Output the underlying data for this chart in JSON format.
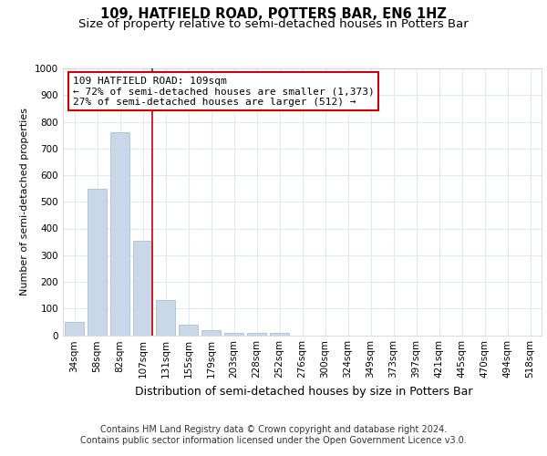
{
  "title": "109, HATFIELD ROAD, POTTERS BAR, EN6 1HZ",
  "subtitle": "Size of property relative to semi-detached houses in Potters Bar",
  "xlabel": "Distribution of semi-detached houses by size in Potters Bar",
  "ylabel": "Number of semi-detached properties",
  "categories": [
    "34sqm",
    "58sqm",
    "82sqm",
    "107sqm",
    "131sqm",
    "155sqm",
    "179sqm",
    "203sqm",
    "228sqm",
    "252sqm",
    "276sqm",
    "300sqm",
    "324sqm",
    "349sqm",
    "373sqm",
    "397sqm",
    "421sqm",
    "445sqm",
    "470sqm",
    "494sqm",
    "518sqm"
  ],
  "values": [
    50,
    550,
    760,
    355,
    130,
    38,
    18,
    10,
    10,
    8,
    0,
    0,
    0,
    0,
    0,
    0,
    0,
    0,
    0,
    0,
    0
  ],
  "bar_color": "#c8d8e8",
  "bar_edge_color": "#a0b8cc",
  "background_color": "#ffffff",
  "grid_color": "#e0e8f0",
  "property_line_x": 3,
  "property_line_color": "#cc0000",
  "annotation_text": "109 HATFIELD ROAD: 109sqm\n← 72% of semi-detached houses are smaller (1,373)\n27% of semi-detached houses are larger (512) →",
  "annotation_box_color": "#ffffff",
  "annotation_box_edge": "#cc0000",
  "footer_line1": "Contains HM Land Registry data © Crown copyright and database right 2024.",
  "footer_line2": "Contains public sector information licensed under the Open Government Licence v3.0.",
  "ylim": [
    0,
    1000
  ],
  "yticks": [
    0,
    100,
    200,
    300,
    400,
    500,
    600,
    700,
    800,
    900,
    1000
  ],
  "title_fontsize": 10.5,
  "subtitle_fontsize": 9.5,
  "xlabel_fontsize": 9,
  "ylabel_fontsize": 8,
  "tick_fontsize": 7.5,
  "footer_fontsize": 7,
  "ann_fontsize": 8
}
